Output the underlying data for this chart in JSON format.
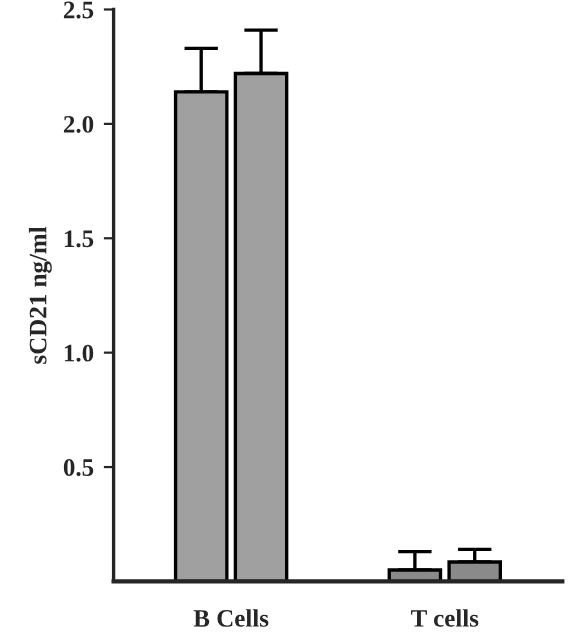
{
  "chart_data": {
    "type": "bar",
    "ylabel": "sCD21 ng/ml",
    "categories": [
      "B Cells",
      "T cells"
    ],
    "series": [
      {
        "colors": [
          "#a0a0a0",
          "#8a8a8a"
        ],
        "values": [
          2.14,
          0.05
        ],
        "errors": [
          0.19,
          0.08
        ]
      },
      {
        "colors": [
          "#a0a0a0",
          "#8a8a8a"
        ],
        "values": [
          2.22,
          0.085
        ],
        "errors": [
          0.19,
          0.055
        ]
      }
    ],
    "ylim": [
      0,
      2.5
    ],
    "yticks": [
      {
        "value": 0.5,
        "label": "0.5"
      },
      {
        "value": 1.0,
        "label": "1.0"
      },
      {
        "value": 1.5,
        "label": "1.5"
      },
      {
        "value": 2.0,
        "label": "2.0"
      },
      {
        "value": 2.5,
        "label": "2.5"
      }
    ],
    "grid": false,
    "legend": false
  }
}
